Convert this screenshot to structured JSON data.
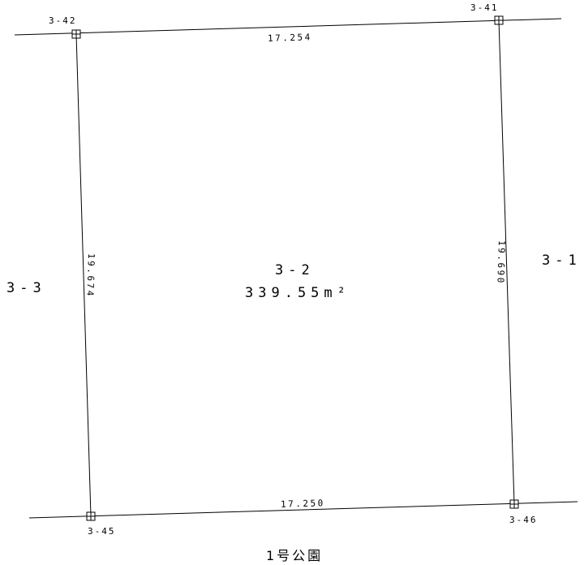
{
  "points": [
    {
      "id": "p342",
      "label": "3-42"
    },
    {
      "id": "p341",
      "label": "3-41"
    },
    {
      "id": "p345",
      "label": "3-45"
    },
    {
      "id": "p346",
      "label": "3-46"
    }
  ],
  "edges": {
    "top": "17.254",
    "bottom": "17.250",
    "left": "19.674",
    "right": "19.690"
  },
  "parcel": {
    "number": "3-2",
    "area": "339.55m²"
  },
  "neighbors": {
    "left": "3-3",
    "right": "3-1",
    "bottom": "1号公園"
  }
}
